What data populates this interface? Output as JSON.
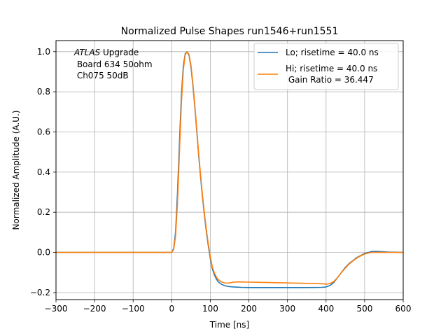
{
  "chart_data": {
    "type": "line",
    "title": "Normalized Pulse Shapes run1546+run1551",
    "xlabel": "Time [ns]",
    "ylabel": "Normalized Amplitude (A.U.)",
    "xlim": [
      -300,
      600
    ],
    "ylim": [
      -0.235,
      1.055
    ],
    "xticks": [
      -300,
      -200,
      -100,
      0,
      100,
      200,
      300,
      400,
      500,
      600
    ],
    "xtick_labels": [
      "−300",
      "−200",
      "−100",
      "0",
      "100",
      "200",
      "300",
      "400",
      "500",
      "600"
    ],
    "yticks": [
      -0.2,
      0.0,
      0.2,
      0.4,
      0.6,
      0.8,
      1.0
    ],
    "ytick_labels": [
      "−0.2",
      "0.0",
      "0.2",
      "0.4",
      "0.6",
      "0.8",
      "1.0"
    ],
    "grid": true,
    "legend": "top-right",
    "annotation": {
      "italic": "ATLAS",
      "line1_rest": " Upgrade",
      "line2": " Board 634 50ohm",
      "line3": " Ch075 50dB"
    },
    "series": [
      {
        "name": "Lo; risetime = 40.0 ns",
        "legend_lines": [
          "Lo; risetime = 40.0 ns"
        ],
        "color": "#1f77b4",
        "x": [
          -300,
          -100,
          0,
          5,
          10,
          15,
          20,
          25,
          30,
          35,
          40,
          45,
          50,
          55,
          60,
          65,
          70,
          75,
          80,
          85,
          90,
          95,
          100,
          105,
          110,
          115,
          120,
          130,
          140,
          150,
          160,
          170,
          180,
          200,
          250,
          300,
          350,
          390,
          400,
          410,
          420,
          430,
          440,
          450,
          460,
          470,
          480,
          490,
          500,
          510,
          520,
          530,
          540,
          560,
          580,
          600
        ],
        "y": [
          0.0,
          0.0,
          0.0,
          0.02,
          0.1,
          0.3,
          0.55,
          0.78,
          0.93,
          0.99,
          1.0,
          0.98,
          0.92,
          0.83,
          0.72,
          0.6,
          0.48,
          0.37,
          0.27,
          0.18,
          0.1,
          0.03,
          -0.03,
          -0.08,
          -0.11,
          -0.13,
          -0.145,
          -0.16,
          -0.167,
          -0.17,
          -0.172,
          -0.173,
          -0.174,
          -0.175,
          -0.175,
          -0.175,
          -0.175,
          -0.174,
          -0.172,
          -0.165,
          -0.15,
          -0.125,
          -0.1,
          -0.075,
          -0.055,
          -0.04,
          -0.025,
          -0.015,
          -0.005,
          0.0,
          0.005,
          0.005,
          0.004,
          0.002,
          0.001,
          0.0
        ]
      },
      {
        "name": "Hi; risetime = 40.0 ns Gain Ratio = 36.447",
        "legend_lines": [
          "Hi; risetime = 40.0 ns",
          " Gain Ratio = 36.447"
        ],
        "color": "#ff7f0e",
        "x": [
          -300,
          -100,
          0,
          5,
          10,
          15,
          20,
          25,
          30,
          35,
          40,
          45,
          50,
          55,
          60,
          65,
          70,
          75,
          80,
          85,
          90,
          95,
          100,
          105,
          110,
          115,
          120,
          130,
          140,
          150,
          160,
          170,
          180,
          200,
          250,
          300,
          350,
          390,
          400,
          410,
          420,
          430,
          440,
          450,
          460,
          470,
          480,
          490,
          500,
          510,
          520,
          530,
          540,
          560,
          580,
          600
        ],
        "y": [
          0.0,
          0.0,
          0.0,
          0.015,
          0.08,
          0.25,
          0.5,
          0.74,
          0.91,
          0.985,
          1.0,
          0.985,
          0.93,
          0.84,
          0.73,
          0.61,
          0.49,
          0.38,
          0.28,
          0.19,
          0.11,
          0.04,
          -0.02,
          -0.07,
          -0.1,
          -0.12,
          -0.135,
          -0.148,
          -0.153,
          -0.152,
          -0.148,
          -0.147,
          -0.147,
          -0.148,
          -0.15,
          -0.152,
          -0.154,
          -0.156,
          -0.158,
          -0.155,
          -0.145,
          -0.125,
          -0.1,
          -0.078,
          -0.058,
          -0.042,
          -0.028,
          -0.017,
          -0.008,
          -0.003,
          0.0,
          0.0,
          0.0,
          0.0,
          0.0,
          0.0
        ]
      }
    ]
  }
}
